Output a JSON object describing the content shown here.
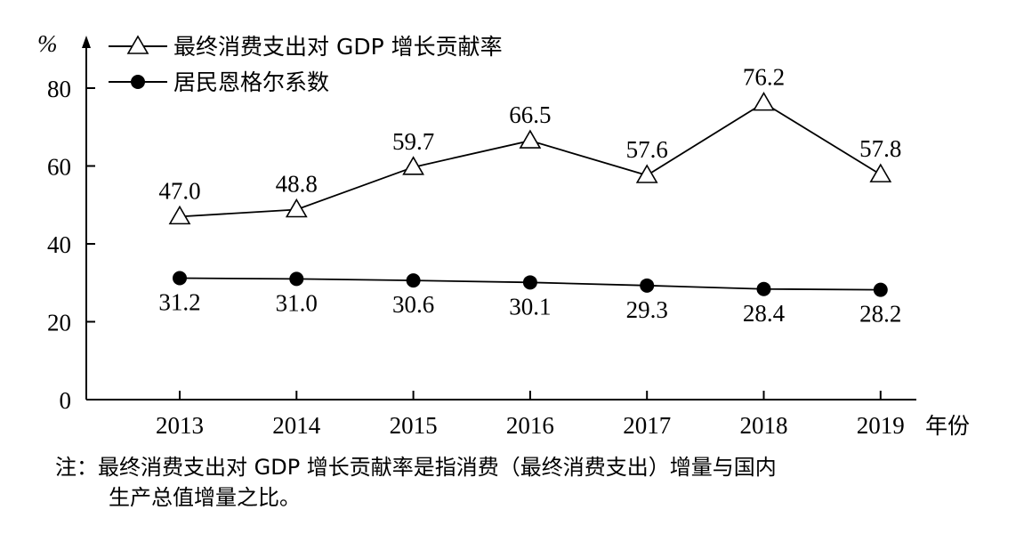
{
  "chart_data": {
    "type": "line",
    "title": "",
    "xlabel": "年份",
    "ylabel": "%",
    "ylim": [
      0,
      80
    ],
    "yticks": [
      0,
      20,
      40,
      60,
      80
    ],
    "x": [
      "2013",
      "2014",
      "2015",
      "2016",
      "2017",
      "2018",
      "2019"
    ],
    "series": [
      {
        "name": "最终消费支出对 GDP 增长贡献率",
        "marker": "triangle-open",
        "values": [
          47.0,
          48.8,
          59.7,
          66.5,
          57.6,
          76.2,
          57.8
        ],
        "labels": [
          "47.0",
          "48.8",
          "59.7",
          "66.5",
          "57.6",
          "76.2",
          "57.8"
        ]
      },
      {
        "name": "居民恩格尔系数",
        "marker": "circle-filled",
        "values": [
          31.2,
          31.0,
          30.6,
          30.1,
          29.3,
          28.4,
          28.2
        ],
        "labels": [
          "31.2",
          "31.0",
          "30.6",
          "30.1",
          "29.3",
          "28.4",
          "28.2"
        ]
      }
    ],
    "legend_position": "top-left",
    "grid": false
  },
  "note": {
    "line1": "注：最终消费支出对 GDP 增长贡献率是指消费（最终消费支出）增量与国内",
    "line2": "生产总值增量之比。"
  }
}
